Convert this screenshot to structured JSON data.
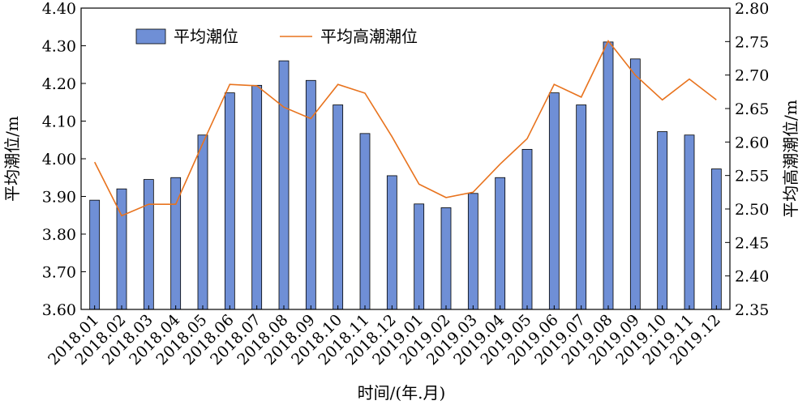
{
  "chart_data": {
    "type": "bar",
    "title": "",
    "xlabel": "时间/(年.月)",
    "ylabel_left": "平均潮位/m",
    "ylabel_right": "平均高潮潮位/m",
    "ylim_left": [
      3.6,
      4.4
    ],
    "ylim_right": [
      2.35,
      2.8
    ],
    "yticks_left": [
      "3.60",
      "3.70",
      "3.80",
      "3.90",
      "4.00",
      "4.10",
      "4.20",
      "4.30",
      "4.40"
    ],
    "yticks_right": [
      "2.35",
      "2.40",
      "2.45",
      "2.50",
      "2.55",
      "2.60",
      "2.65",
      "2.70",
      "2.75",
      "2.80"
    ],
    "grid": false,
    "legend_position": "top-left",
    "categories": [
      "2018.01",
      "2018.02",
      "2018.03",
      "2018.04",
      "2018.05",
      "2018.06",
      "2018.07",
      "2018.08",
      "2018.09",
      "2018.10",
      "2018.11",
      "2018.12",
      "2019.01",
      "2019.02",
      "2019.03",
      "2019.04",
      "2019.05",
      "2019.06",
      "2019.07",
      "2019.08",
      "2019.09",
      "2019.10",
      "2019.11",
      "2019.12"
    ],
    "series": [
      {
        "name": "平均潮位",
        "kind": "bar",
        "axis": "left",
        "color": "#6f8fd6",
        "values": [
          3.89,
          3.92,
          3.945,
          3.95,
          4.063,
          4.175,
          4.195,
          4.26,
          4.208,
          4.143,
          4.067,
          3.955,
          3.88,
          3.87,
          3.908,
          3.95,
          4.025,
          4.175,
          4.143,
          4.31,
          4.265,
          4.072,
          4.063,
          3.973
        ]
      },
      {
        "name": "平均高潮潮位",
        "kind": "line",
        "axis": "right",
        "color": "#e8731e",
        "values": [
          2.57,
          2.49,
          2.507,
          2.507,
          2.598,
          2.686,
          2.684,
          2.652,
          2.635,
          2.686,
          2.673,
          2.608,
          2.537,
          2.517,
          2.525,
          2.567,
          2.605,
          2.686,
          2.667,
          2.751,
          2.7,
          2.663,
          2.694,
          2.663
        ]
      }
    ]
  }
}
